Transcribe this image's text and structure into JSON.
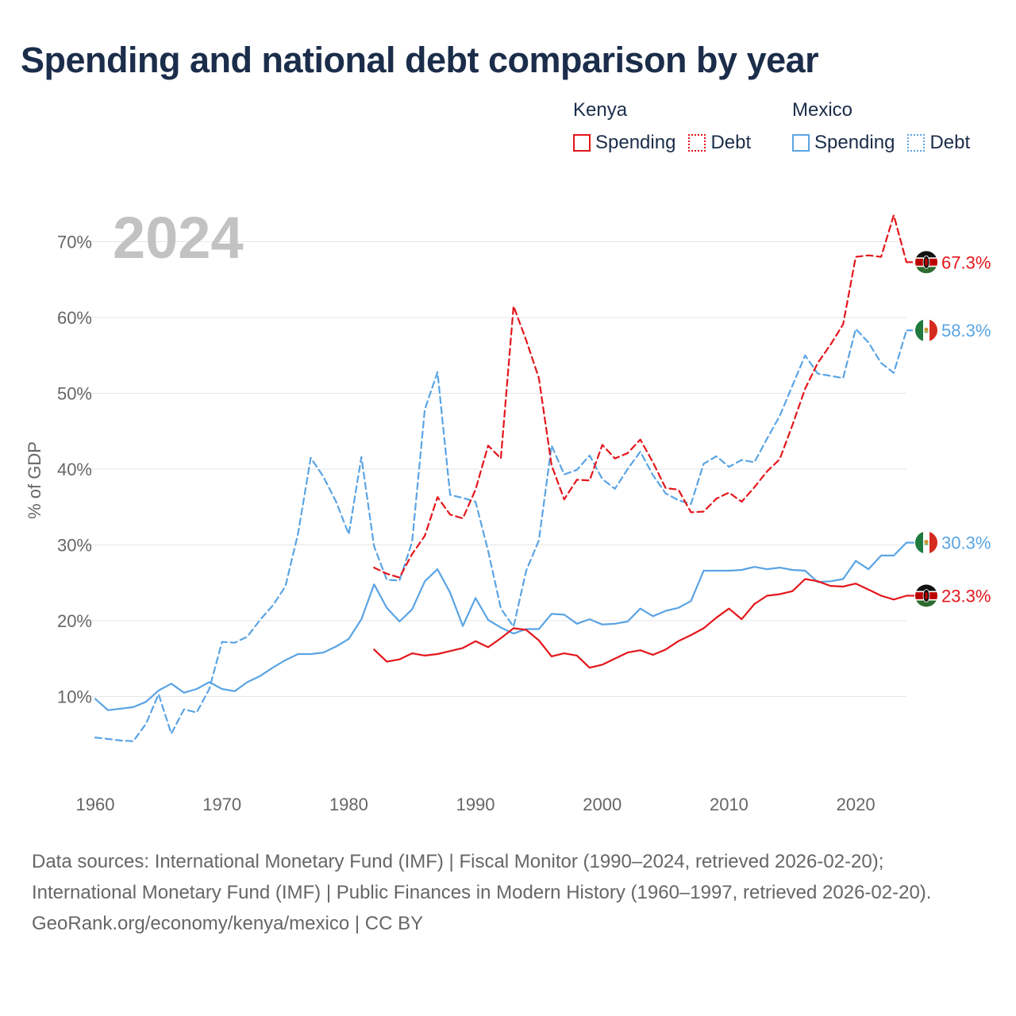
{
  "title": "Spending and national debt comparison by year",
  "legend": {
    "kenya": {
      "name": "Kenya",
      "spending": "Spending",
      "debt": "Debt"
    },
    "mexico": {
      "name": "Mexico",
      "spending": "Spending",
      "debt": "Debt"
    }
  },
  "footer": {
    "sources": "Data sources: International Monetary Fund (IMF) | Fiscal Monitor (1990–2024, retrieved 2026-02-20); International Monetary Fund (IMF) | Public Finances in Modern History (1960–1997, retrieved 2026-02-20).",
    "attribution": "GeoRank.org/economy/kenya/mexico | CC BY"
  },
  "colors": {
    "kenya": "#e3161b",
    "mexico": "#5aa4e4",
    "grid": "#e6e6e6",
    "axis_text": "#666666",
    "year_watermark": "#c2c2c2"
  },
  "chart_data": {
    "type": "line",
    "year_watermark": "2024",
    "ylabel": "% of GDP",
    "xlim": [
      1960,
      2024
    ],
    "ylim": [
      0,
      75
    ],
    "x_ticks": [
      1960,
      1970,
      1980,
      1990,
      2000,
      2010,
      2020
    ],
    "y_ticks": [
      10,
      20,
      30,
      40,
      50,
      60,
      70
    ],
    "y_tick_labels": [
      "10%",
      "20%",
      "30%",
      "40%",
      "50%",
      "60%",
      "70%"
    ],
    "series": [
      {
        "name": "Mexico Debt",
        "country": "mexico",
        "dash": true,
        "end_label": "58.3%",
        "points": [
          [
            1960,
            4.6
          ],
          [
            1961,
            4.4
          ],
          [
            1962,
            4.2
          ],
          [
            1963,
            4.1
          ],
          [
            1964,
            6.4
          ],
          [
            1965,
            10.3
          ],
          [
            1966,
            5.1
          ],
          [
            1967,
            8.3
          ],
          [
            1968,
            7.9
          ],
          [
            1969,
            11.0
          ],
          [
            1970,
            17.2
          ],
          [
            1971,
            17.1
          ],
          [
            1972,
            17.9
          ],
          [
            1973,
            20.1
          ],
          [
            1974,
            22.0
          ],
          [
            1975,
            24.5
          ],
          [
            1976,
            31.5
          ],
          [
            1977,
            41.5
          ],
          [
            1978,
            39.0
          ],
          [
            1979,
            35.7
          ],
          [
            1980,
            31.4
          ],
          [
            1981,
            41.6
          ],
          [
            1982,
            29.8
          ],
          [
            1983,
            25.4
          ],
          [
            1984,
            25.3
          ],
          [
            1985,
            30.4
          ],
          [
            1986,
            47.9
          ],
          [
            1987,
            52.8
          ],
          [
            1988,
            36.6
          ],
          [
            1989,
            36.2
          ],
          [
            1990,
            35.7
          ],
          [
            1991,
            29.2
          ],
          [
            1992,
            21.6
          ],
          [
            1993,
            19.2
          ],
          [
            1994,
            26.6
          ],
          [
            1995,
            30.6
          ],
          [
            1996,
            43.1
          ],
          [
            1997,
            39.3
          ],
          [
            1998,
            39.9
          ],
          [
            1999,
            41.8
          ],
          [
            2000,
            38.7
          ],
          [
            2001,
            37.4
          ],
          [
            2002,
            40.0
          ],
          [
            2003,
            42.3
          ],
          [
            2004,
            39.2
          ],
          [
            2005,
            36.8
          ],
          [
            2006,
            35.9
          ],
          [
            2007,
            35.4
          ],
          [
            2008,
            40.7
          ],
          [
            2009,
            41.7
          ],
          [
            2010,
            40.3
          ],
          [
            2011,
            41.2
          ],
          [
            2012,
            40.9
          ],
          [
            2013,
            44.0
          ],
          [
            2014,
            47.0
          ],
          [
            2015,
            51.0
          ],
          [
            2016,
            55.0
          ],
          [
            2017,
            52.6
          ],
          [
            2018,
            52.3
          ],
          [
            2019,
            52.0
          ],
          [
            2020,
            58.5
          ],
          [
            2021,
            56.7
          ],
          [
            2022,
            54.0
          ],
          [
            2023,
            52.7
          ],
          [
            2024,
            58.3
          ]
        ]
      },
      {
        "name": "Kenya Debt",
        "country": "kenya",
        "dash": true,
        "end_label": "67.3%",
        "points": [
          [
            1982,
            27.0
          ],
          [
            1983,
            26.2
          ],
          [
            1984,
            25.7
          ],
          [
            1985,
            28.8
          ],
          [
            1986,
            31.2
          ],
          [
            1987,
            36.3
          ],
          [
            1988,
            34.0
          ],
          [
            1989,
            33.5
          ],
          [
            1990,
            37.3
          ],
          [
            1991,
            43.1
          ],
          [
            1992,
            41.4
          ],
          [
            1993,
            61.5
          ],
          [
            1994,
            57.0
          ],
          [
            1995,
            52.0
          ],
          [
            1996,
            40.5
          ],
          [
            1997,
            36.0
          ],
          [
            1998,
            38.6
          ],
          [
            1999,
            38.5
          ],
          [
            2000,
            43.2
          ],
          [
            2001,
            41.4
          ],
          [
            2002,
            42.1
          ],
          [
            2003,
            43.9
          ],
          [
            2004,
            40.9
          ],
          [
            2005,
            37.5
          ],
          [
            2006,
            37.3
          ],
          [
            2007,
            34.3
          ],
          [
            2008,
            34.4
          ],
          [
            2009,
            36.1
          ],
          [
            2010,
            36.9
          ],
          [
            2011,
            35.7
          ],
          [
            2012,
            37.6
          ],
          [
            2013,
            39.7
          ],
          [
            2014,
            41.3
          ],
          [
            2015,
            45.8
          ],
          [
            2016,
            50.6
          ],
          [
            2017,
            54.0
          ],
          [
            2018,
            56.4
          ],
          [
            2019,
            59.1
          ],
          [
            2020,
            68.0
          ],
          [
            2021,
            68.2
          ],
          [
            2022,
            68.0
          ],
          [
            2023,
            73.5
          ],
          [
            2024,
            67.3
          ]
        ]
      },
      {
        "name": "Mexico Spending",
        "country": "mexico",
        "dash": false,
        "end_label": "30.3%",
        "points": [
          [
            1960,
            9.7
          ],
          [
            1961,
            8.2
          ],
          [
            1962,
            8.4
          ],
          [
            1963,
            8.6
          ],
          [
            1964,
            9.3
          ],
          [
            1965,
            10.8
          ],
          [
            1966,
            11.7
          ],
          [
            1967,
            10.5
          ],
          [
            1968,
            11.0
          ],
          [
            1969,
            11.9
          ],
          [
            1970,
            11.0
          ],
          [
            1971,
            10.7
          ],
          [
            1972,
            11.9
          ],
          [
            1973,
            12.7
          ],
          [
            1974,
            13.8
          ],
          [
            1975,
            14.8
          ],
          [
            1976,
            15.6
          ],
          [
            1977,
            15.6
          ],
          [
            1978,
            15.8
          ],
          [
            1979,
            16.6
          ],
          [
            1980,
            17.6
          ],
          [
            1981,
            20.2
          ],
          [
            1982,
            24.8
          ],
          [
            1983,
            21.7
          ],
          [
            1984,
            19.9
          ],
          [
            1985,
            21.5
          ],
          [
            1986,
            25.2
          ],
          [
            1987,
            26.8
          ],
          [
            1988,
            23.7
          ],
          [
            1989,
            19.3
          ],
          [
            1990,
            23.0
          ],
          [
            1991,
            20.1
          ],
          [
            1992,
            19.1
          ],
          [
            1993,
            18.3
          ],
          [
            1994,
            18.9
          ],
          [
            1995,
            18.9
          ],
          [
            1996,
            20.9
          ],
          [
            1997,
            20.8
          ],
          [
            1998,
            19.6
          ],
          [
            1999,
            20.2
          ],
          [
            2000,
            19.5
          ],
          [
            2001,
            19.6
          ],
          [
            2002,
            19.9
          ],
          [
            2003,
            21.6
          ],
          [
            2004,
            20.6
          ],
          [
            2005,
            21.3
          ],
          [
            2006,
            21.7
          ],
          [
            2007,
            22.6
          ],
          [
            2008,
            26.6
          ],
          [
            2009,
            26.6
          ],
          [
            2010,
            26.6
          ],
          [
            2011,
            26.7
          ],
          [
            2012,
            27.1
          ],
          [
            2013,
            26.8
          ],
          [
            2014,
            27.0
          ],
          [
            2015,
            26.7
          ],
          [
            2016,
            26.6
          ],
          [
            2017,
            25.1
          ],
          [
            2018,
            25.2
          ],
          [
            2019,
            25.5
          ],
          [
            2020,
            27.9
          ],
          [
            2021,
            26.8
          ],
          [
            2022,
            28.6
          ],
          [
            2023,
            28.6
          ],
          [
            2024,
            30.3
          ]
        ]
      },
      {
        "name": "Kenya Spending",
        "country": "kenya",
        "dash": false,
        "end_label": "23.3%",
        "points": [
          [
            1982,
            16.2
          ],
          [
            1983,
            14.6
          ],
          [
            1984,
            14.9
          ],
          [
            1985,
            15.7
          ],
          [
            1986,
            15.4
          ],
          [
            1987,
            15.6
          ],
          [
            1988,
            16.0
          ],
          [
            1989,
            16.4
          ],
          [
            1990,
            17.3
          ],
          [
            1991,
            16.5
          ],
          [
            1992,
            17.7
          ],
          [
            1993,
            19.0
          ],
          [
            1994,
            18.8
          ],
          [
            1995,
            17.4
          ],
          [
            1996,
            15.3
          ],
          [
            1997,
            15.7
          ],
          [
            1998,
            15.4
          ],
          [
            1999,
            13.8
          ],
          [
            2000,
            14.2
          ],
          [
            2001,
            15.0
          ],
          [
            2002,
            15.8
          ],
          [
            2003,
            16.1
          ],
          [
            2004,
            15.5
          ],
          [
            2005,
            16.2
          ],
          [
            2006,
            17.3
          ],
          [
            2007,
            18.1
          ],
          [
            2008,
            19.0
          ],
          [
            2009,
            20.4
          ],
          [
            2010,
            21.6
          ],
          [
            2011,
            20.2
          ],
          [
            2012,
            22.2
          ],
          [
            2013,
            23.3
          ],
          [
            2014,
            23.5
          ],
          [
            2015,
            23.9
          ],
          [
            2016,
            25.5
          ],
          [
            2017,
            25.2
          ],
          [
            2018,
            24.6
          ],
          [
            2019,
            24.5
          ],
          [
            2020,
            24.9
          ],
          [
            2021,
            24.1
          ],
          [
            2022,
            23.3
          ],
          [
            2023,
            22.8
          ],
          [
            2024,
            23.3
          ]
        ]
      }
    ]
  }
}
